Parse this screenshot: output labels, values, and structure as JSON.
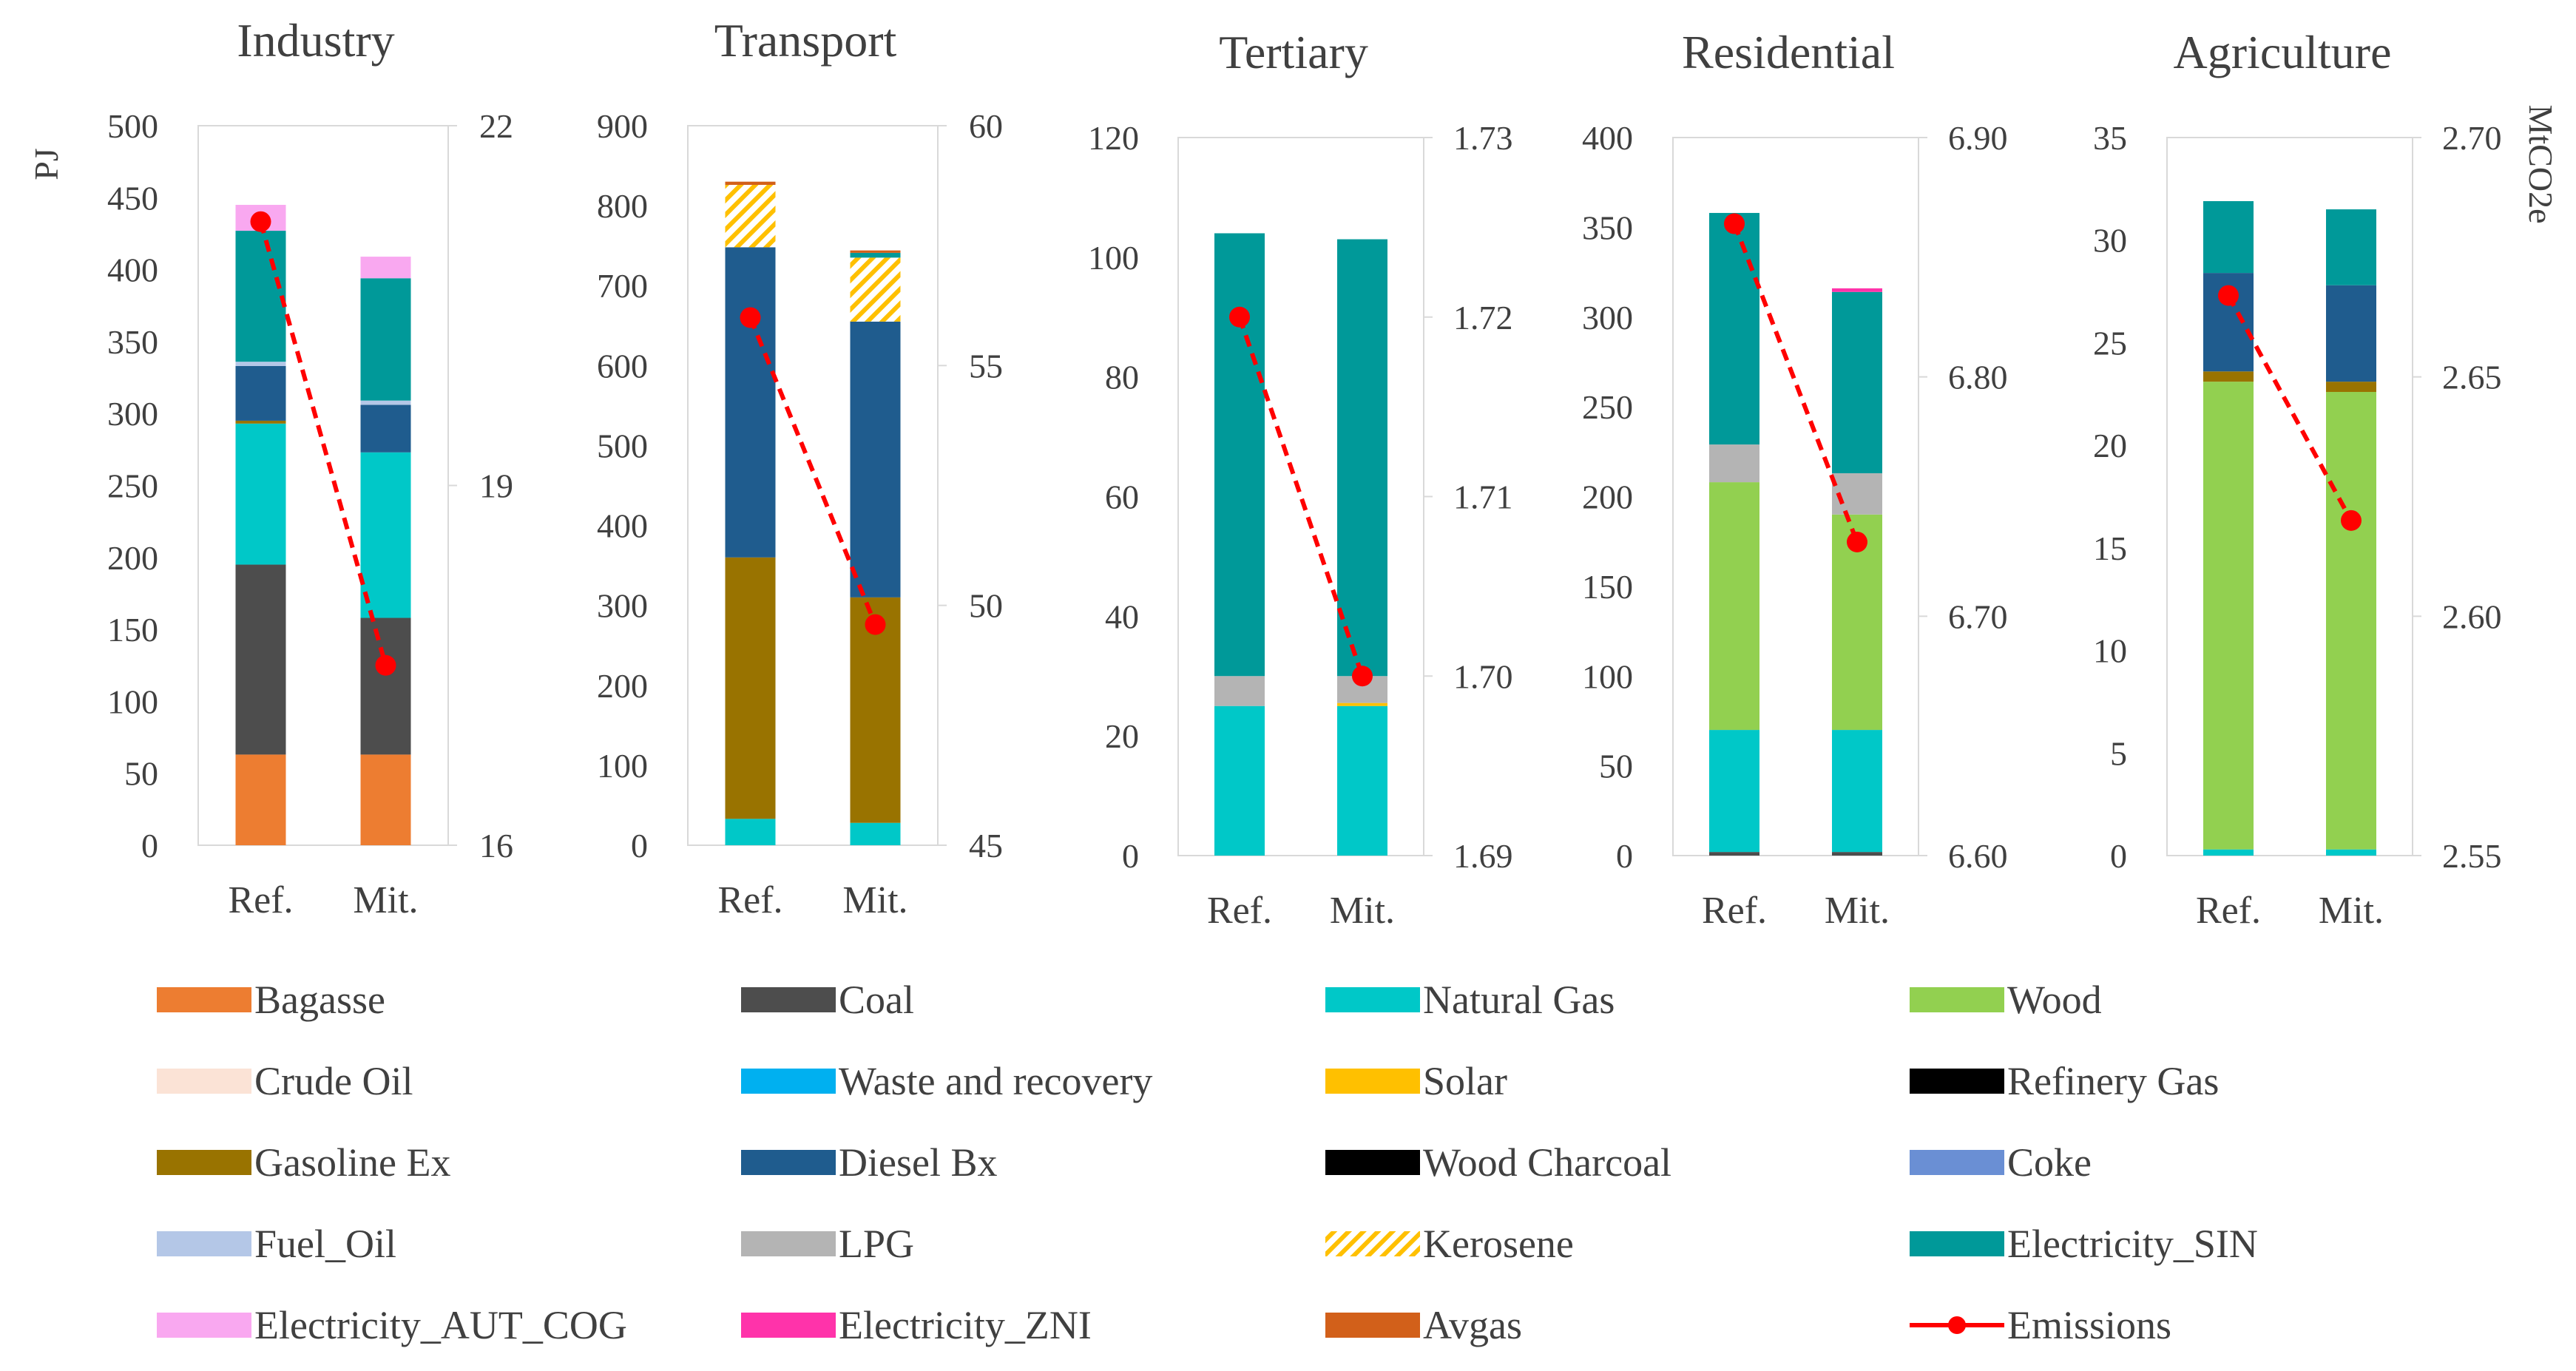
{
  "y_unit_left": "PJ",
  "y_unit_right": "MtCO2e",
  "colors": {
    "Bagasse": "#ED7D31",
    "Coal": "#4D4D4D",
    "Natural Gas": "#00C8C8",
    "Wood": "#92D050",
    "Crude Oil": "#FBE3D6",
    "Waste and recovery": "#00B0F0",
    "Solar": "#FFC000",
    "Refinery Gas": "#595959",
    "Gasoline Ex": "#997300",
    "Diesel Bx": "#1F5C8E",
    "Wood Charcoal": "#375623",
    "Coke": "#6A8FD4",
    "Fuel_Oil": "#B4C7E7",
    "LPG": "#B4B4B4",
    "Kerosene": "#FFC000",
    "Electricity_SIN": "#009999",
    "Electricity_AUT_COG": "#F9A8F0",
    "Electricity_ZNI": "#FF33AA",
    "Avgas": "#D2601A",
    "Emissions": "#FF0000"
  },
  "legend": [
    {
      "label": "Bagasse",
      "style": "solid"
    },
    {
      "label": "Coal",
      "style": "solid"
    },
    {
      "label": "Natural Gas",
      "style": "solid"
    },
    {
      "label": "Wood",
      "style": "solid"
    },
    {
      "label": "Crude Oil",
      "style": "solid"
    },
    {
      "label": "Waste and recovery",
      "style": "solid"
    },
    {
      "label": "Solar",
      "style": "solid"
    },
    {
      "label": "Refinery Gas",
      "style": "hatch"
    },
    {
      "label": "Gasoline Ex",
      "style": "solid"
    },
    {
      "label": "Diesel Bx",
      "style": "solid"
    },
    {
      "label": "Wood Charcoal",
      "style": "hatch"
    },
    {
      "label": "Coke",
      "style": "solid"
    },
    {
      "label": "Fuel_Oil",
      "style": "solid"
    },
    {
      "label": "LPG",
      "style": "solid"
    },
    {
      "label": "Kerosene",
      "style": "hatch"
    },
    {
      "label": "Electricity_SIN",
      "style": "solid"
    },
    {
      "label": "Electricity_AUT_COG",
      "style": "solid"
    },
    {
      "label": "Electricity_ZNI",
      "style": "solid"
    },
    {
      "label": "Avgas",
      "style": "solid"
    },
    {
      "label": "Emissions",
      "style": "line"
    }
  ],
  "chart_data": [
    {
      "type": "bar",
      "stacked": true,
      "title": "Industry",
      "categories": [
        "Ref.",
        "Mit."
      ],
      "ylim": [
        0,
        500
      ],
      "yticks": [
        "0",
        "50",
        "100",
        "150",
        "200",
        "250",
        "300",
        "350",
        "400",
        "450",
        "500"
      ],
      "y2lim": [
        16,
        22
      ],
      "y2ticks": [
        "16",
        "19",
        "22"
      ],
      "series": [
        {
          "name": "Bagasse",
          "values": [
            63,
            63
          ]
        },
        {
          "name": "Coal",
          "values": [
            132,
            95
          ]
        },
        {
          "name": "Natural Gas",
          "values": [
            98,
            115
          ]
        },
        {
          "name": "Gasoline Ex",
          "values": [
            2,
            0
          ]
        },
        {
          "name": "Diesel Bx",
          "values": [
            38,
            33
          ]
        },
        {
          "name": "Fuel_Oil",
          "values": [
            3,
            3
          ]
        },
        {
          "name": "Electricity_SIN",
          "values": [
            91,
            85
          ]
        },
        {
          "name": "Electricity_AUT_COG",
          "values": [
            18,
            15
          ]
        }
      ],
      "emissions": [
        21.2,
        17.5
      ]
    },
    {
      "type": "bar",
      "stacked": true,
      "title": "Transport",
      "categories": [
        "Ref.",
        "Mit."
      ],
      "ylim": [
        0,
        900
      ],
      "yticks": [
        "0",
        "100",
        "200",
        "300",
        "400",
        "500",
        "600",
        "700",
        "800",
        "900"
      ],
      "y2lim": [
        45,
        60
      ],
      "y2ticks": [
        "45",
        "50",
        "55",
        "60"
      ],
      "series": [
        {
          "name": "Natural Gas",
          "values": [
            33,
            28
          ]
        },
        {
          "name": "Gasoline Ex",
          "values": [
            327,
            282
          ]
        },
        {
          "name": "Diesel Bx",
          "values": [
            388,
            345
          ]
        },
        {
          "name": "Kerosene",
          "values": [
            78,
            80
          ]
        },
        {
          "name": "Electricity_SIN",
          "values": [
            0,
            6
          ]
        },
        {
          "name": "Avgas",
          "values": [
            4,
            3
          ]
        }
      ],
      "emissions": [
        56,
        49.6
      ]
    },
    {
      "type": "bar",
      "stacked": true,
      "title": "Tertiary",
      "categories": [
        "Ref.",
        "Mit."
      ],
      "ylim": [
        0,
        120
      ],
      "yticks": [
        "0",
        "20",
        "40",
        "60",
        "80",
        "100",
        "120"
      ],
      "y2lim": [
        1.69,
        1.73
      ],
      "y2ticks": [
        "1.69",
        "1.70",
        "1.71",
        "1.72",
        "1.73"
      ],
      "series": [
        {
          "name": "Natural Gas",
          "values": [
            25,
            25
          ]
        },
        {
          "name": "Solar",
          "values": [
            0,
            0.5
          ]
        },
        {
          "name": "LPG",
          "values": [
            5,
            4.5
          ]
        },
        {
          "name": "Electricity_SIN",
          "values": [
            74,
            73
          ]
        }
      ],
      "emissions": [
        1.72,
        1.7
      ]
    },
    {
      "type": "bar",
      "stacked": true,
      "title": "Residential",
      "categories": [
        "Ref.",
        "Mit."
      ],
      "ylim": [
        0,
        400
      ],
      "yticks": [
        "0",
        "50",
        "100",
        "150",
        "200",
        "250",
        "300",
        "350",
        "400"
      ],
      "y2lim": [
        6.6,
        6.9
      ],
      "y2ticks": [
        "6.60",
        "6.70",
        "6.80",
        "6.90"
      ],
      "series": [
        {
          "name": "Coal",
          "values": [
            2,
            2
          ]
        },
        {
          "name": "Natural Gas",
          "values": [
            68,
            68
          ]
        },
        {
          "name": "Wood",
          "values": [
            138,
            120
          ]
        },
        {
          "name": "LPG",
          "values": [
            21,
            23
          ]
        },
        {
          "name": "Electricity_SIN",
          "values": [
            129,
            101
          ]
        },
        {
          "name": "Electricity_ZNI",
          "values": [
            0,
            2
          ]
        }
      ],
      "emissions": [
        6.864,
        6.731
      ]
    },
    {
      "type": "bar",
      "stacked": true,
      "title": "Agriculture",
      "categories": [
        "Ref.",
        "Mit."
      ],
      "ylim": [
        0,
        35
      ],
      "yticks": [
        "0",
        "5",
        "10",
        "15",
        "20",
        "25",
        "30",
        "35"
      ],
      "y2lim": [
        2.55,
        2.7
      ],
      "y2ticks": [
        "2.55",
        "2.60",
        "2.65",
        "2.70"
      ],
      "series": [
        {
          "name": "Natural Gas",
          "values": [
            0.3,
            0.3
          ]
        },
        {
          "name": "Wood",
          "values": [
            22.8,
            22.3
          ]
        },
        {
          "name": "Gasoline Ex",
          "values": [
            0.5,
            0.5
          ]
        },
        {
          "name": "Diesel Bx",
          "values": [
            4.8,
            4.7
          ]
        },
        {
          "name": "Electricity_SIN",
          "values": [
            3.5,
            3.7
          ]
        }
      ],
      "emissions": [
        2.667,
        2.62
      ]
    }
  ]
}
